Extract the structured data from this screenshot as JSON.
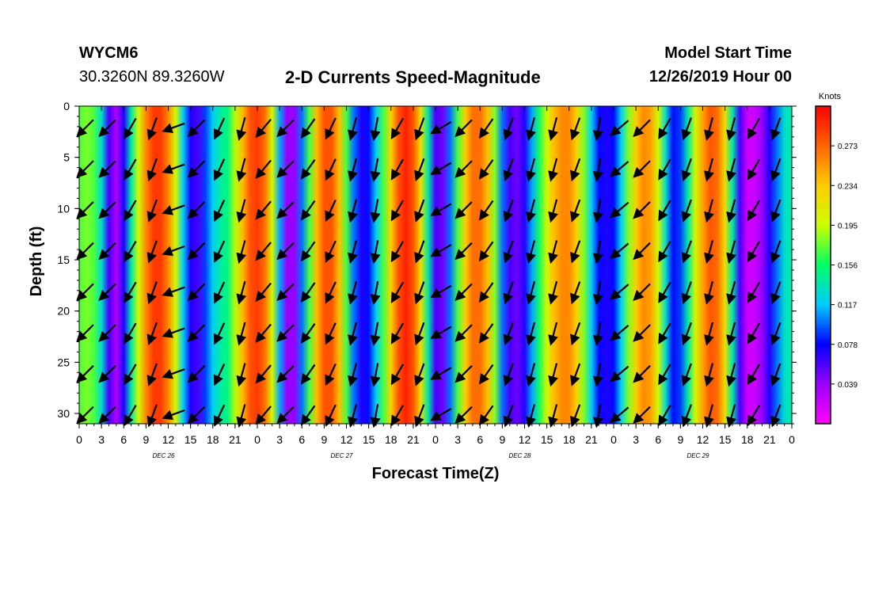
{
  "header": {
    "station": "WYCM6",
    "coords": "30.3260N 89.3260W",
    "title": "2-D Currents Speed-Magnitude",
    "model_start_label": "Model Start Time",
    "model_start_value": "12/26/2019 Hour 00"
  },
  "chart_data": {
    "type": "heatmap",
    "title": "2-D Currents Speed-Magnitude",
    "xlabel": "Forecast Time(Z)",
    "ylabel": "Depth (ft)",
    "x_tick_labels": [
      "0",
      "3",
      "6",
      "9",
      "12",
      "15",
      "18",
      "21",
      "0",
      "3",
      "6",
      "9",
      "12",
      "15",
      "18",
      "21",
      "0",
      "3",
      "6",
      "9",
      "12",
      "15",
      "18",
      "21",
      "0",
      "3",
      "6",
      "9",
      "12",
      "15",
      "18",
      "21",
      "0"
    ],
    "date_labels": [
      "DEC 26",
      "DEC 27",
      "DEC 28",
      "DEC 29"
    ],
    "x_range_hours": [
      0,
      96
    ],
    "y_tick_labels": [
      "0",
      "5",
      "10",
      "15",
      "20",
      "25",
      "30"
    ],
    "y_range_ft": [
      0,
      31
    ],
    "y_inverted": true,
    "colorbar": {
      "units": "Knots",
      "tick_labels": [
        "0.273",
        "0.234",
        "0.195",
        "0.156",
        "0.117",
        "0.078",
        "0.039"
      ],
      "range": [
        0.0,
        0.312
      ],
      "colors": [
        "#ff00ff",
        "#9900ff",
        "#0000ff",
        "#00ccff",
        "#00ff66",
        "#ccff00",
        "#ffcc00",
        "#ff6600",
        "#ff0000"
      ]
    },
    "speed_profile_hours": [
      0,
      1,
      2,
      3,
      4,
      5,
      6,
      7,
      8,
      9,
      10,
      11,
      12,
      13,
      14,
      15,
      16,
      17,
      18,
      19,
      20,
      21,
      22,
      23,
      24,
      25,
      26,
      27,
      28,
      29,
      30,
      31,
      32,
      33,
      34,
      35,
      36,
      37,
      38,
      39,
      40,
      41,
      42,
      43,
      44,
      45,
      46,
      47,
      48,
      49,
      50,
      51,
      52,
      53,
      54,
      55,
      56,
      57,
      58,
      59,
      60,
      61,
      62,
      63,
      64,
      65,
      66,
      67,
      68,
      69,
      70,
      71,
      72,
      73,
      74,
      75,
      76,
      77,
      78,
      79,
      80,
      81,
      82,
      83,
      84,
      85,
      86,
      87,
      88,
      89,
      90,
      91,
      92,
      93,
      94,
      95,
      96
    ],
    "speed_profile_knots": [
      0.17,
      0.18,
      0.17,
      0.13,
      0.06,
      0.03,
      0.07,
      0.14,
      0.2,
      0.26,
      0.29,
      0.29,
      0.26,
      0.2,
      0.12,
      0.07,
      0.06,
      0.09,
      0.12,
      0.14,
      0.15,
      0.19,
      0.24,
      0.28,
      0.29,
      0.27,
      0.2,
      0.11,
      0.04,
      0.04,
      0.1,
      0.17,
      0.24,
      0.28,
      0.28,
      0.24,
      0.17,
      0.1,
      0.07,
      0.08,
      0.12,
      0.17,
      0.23,
      0.28,
      0.3,
      0.28,
      0.22,
      0.14,
      0.06,
      0.05,
      0.1,
      0.17,
      0.23,
      0.27,
      0.27,
      0.24,
      0.18,
      0.1,
      0.06,
      0.05,
      0.07,
      0.11,
      0.16,
      0.2,
      0.24,
      0.26,
      0.26,
      0.23,
      0.18,
      0.12,
      0.08,
      0.07,
      0.08,
      0.12,
      0.18,
      0.23,
      0.26,
      0.25,
      0.2,
      0.13,
      0.08,
      0.09,
      0.14,
      0.2,
      0.25,
      0.28,
      0.27,
      0.22,
      0.14,
      0.06,
      0.02,
      0.02,
      0.04,
      0.07,
      0.1,
      0.13,
      0.14
    ],
    "vector_hours": [
      1,
      4,
      7,
      10,
      13,
      16,
      19,
      22,
      25,
      28,
      31,
      34,
      37,
      40,
      43,
      46,
      49,
      52,
      55,
      58,
      61,
      64,
      67,
      70,
      73,
      76,
      79,
      82,
      85,
      88,
      91,
      94
    ],
    "vector_depths_ft": [
      2,
      6,
      10,
      14,
      18,
      22,
      26,
      30
    ],
    "vector_direction_deg": [
      225,
      225,
      210,
      200,
      250,
      225,
      205,
      195,
      220,
      225,
      215,
      205,
      195,
      190,
      210,
      200,
      240,
      225,
      215,
      200,
      195,
      195,
      200,
      190,
      230,
      225,
      210,
      200,
      195,
      195,
      210,
      200
    ]
  }
}
